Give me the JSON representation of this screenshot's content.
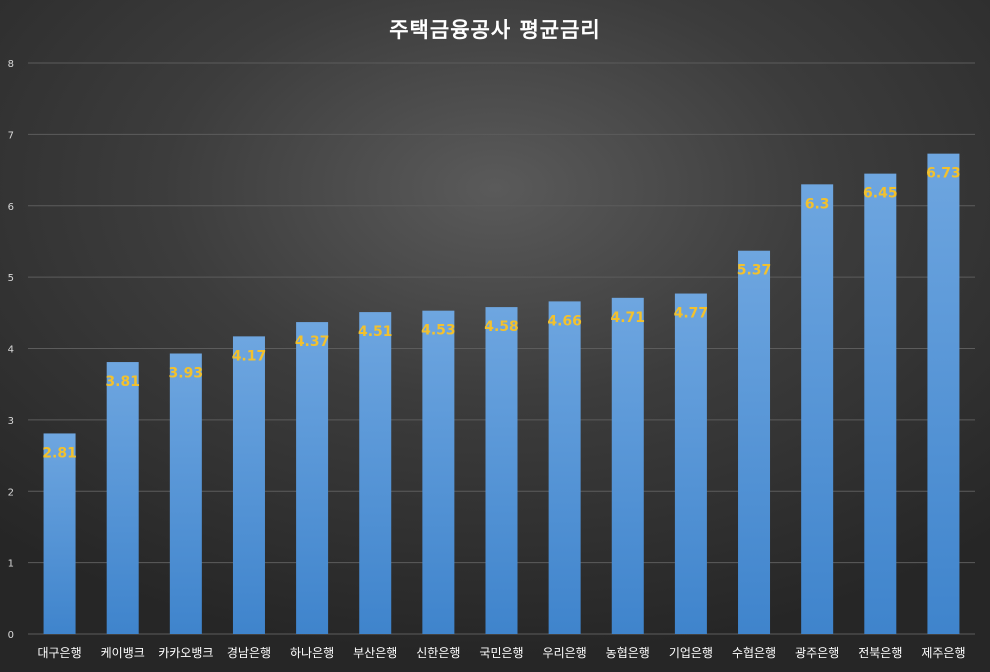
{
  "chart_data": {
    "type": "bar",
    "title": "주택금융공사 평균금리",
    "xlabel": "",
    "ylabel": "",
    "ylim": [
      0,
      8
    ],
    "yticks": [
      "0",
      "1",
      "2",
      "3",
      "4",
      "5",
      "6",
      "7",
      "8"
    ],
    "grid": true,
    "categories": [
      "대구은행",
      "케이뱅크",
      "카카오뱅크",
      "경남은행",
      "하나은행",
      "부산은행",
      "신한은행",
      "국민은행",
      "우리은행",
      "농협은행",
      "기업은행",
      "수협은행",
      "광주은행",
      "전북은행",
      "제주은행"
    ],
    "values": [
      2.81,
      3.81,
      3.93,
      4.17,
      4.37,
      4.51,
      4.53,
      4.58,
      4.66,
      4.71,
      4.77,
      5.37,
      6.3,
      6.45,
      6.73
    ],
    "data_labels": [
      "2.81",
      "3.81",
      "3.93",
      "4.17",
      "4.37",
      "4.51",
      "4.53",
      "4.58",
      "4.66",
      "4.71",
      "4.77",
      "5.37",
      "6.3",
      "6.45",
      "6.73"
    ],
    "colors": {
      "bar_top": "#6ea6e0",
      "bar_bottom": "#3f84cc",
      "data_label": "#f2c12e",
      "grid": "#5c5c5c"
    }
  }
}
